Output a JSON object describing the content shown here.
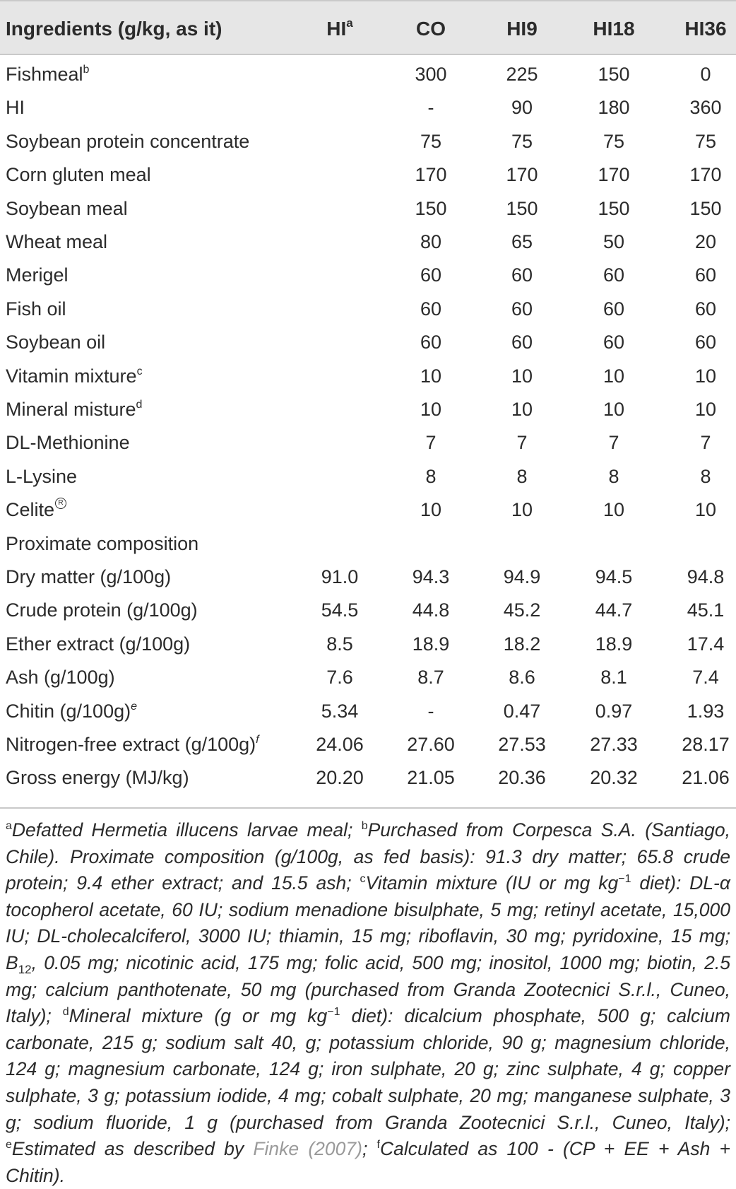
{
  "table": {
    "headers": [
      {
        "text": "Ingredients (g/kg, as it)",
        "sup": ""
      },
      {
        "text": "HI",
        "sup": "a"
      },
      {
        "text": "CO",
        "sup": ""
      },
      {
        "text": "HI9",
        "sup": ""
      },
      {
        "text": "HI18",
        "sup": ""
      },
      {
        "text": "HI36",
        "sup": ""
      }
    ],
    "rows": [
      {
        "label": "Fishmeal",
        "sup": "b",
        "values": [
          "",
          "300",
          "225",
          "150",
          "0"
        ]
      },
      {
        "label": "HI",
        "sup": "",
        "values": [
          "",
          "-",
          "90",
          "180",
          "360"
        ]
      },
      {
        "label": "Soybean protein concentrate",
        "sup": "",
        "values": [
          "",
          "75",
          "75",
          "75",
          "75"
        ]
      },
      {
        "label": "Corn gluten meal",
        "sup": "",
        "values": [
          "",
          "170",
          "170",
          "170",
          "170"
        ]
      },
      {
        "label": "Soybean meal",
        "sup": "",
        "values": [
          "",
          "150",
          "150",
          "150",
          "150"
        ]
      },
      {
        "label": "Wheat meal",
        "sup": "",
        "values": [
          "",
          "80",
          "65",
          "50",
          "20"
        ]
      },
      {
        "label": "Merigel",
        "sup": "",
        "values": [
          "",
          "60",
          "60",
          "60",
          "60"
        ]
      },
      {
        "label": "Fish oil",
        "sup": "",
        "values": [
          "",
          "60",
          "60",
          "60",
          "60"
        ]
      },
      {
        "label": "Soybean oil",
        "sup": "",
        "values": [
          "",
          "60",
          "60",
          "60",
          "60"
        ]
      },
      {
        "label": "Vitamin mixture",
        "sup": "c",
        "values": [
          "",
          "10",
          "10",
          "10",
          "10"
        ]
      },
      {
        "label": "Mineral misture",
        "sup": "d",
        "values": [
          "",
          "10",
          "10",
          "10",
          "10"
        ]
      },
      {
        "label": "DL-Methionine",
        "sup": "",
        "values": [
          "",
          "7",
          "7",
          "7",
          "7"
        ]
      },
      {
        "label": "L-Lysine",
        "sup": "",
        "values": [
          "",
          "8",
          "8",
          "8",
          "8"
        ]
      },
      {
        "label": "Celite",
        "sup": "R",
        "values": [
          "",
          "10",
          "10",
          "10",
          "10"
        ]
      },
      {
        "label": "Proximate composition",
        "sup": "",
        "values": [
          "",
          "",
          "",
          "",
          ""
        ]
      },
      {
        "label": "Dry matter (g/100g)",
        "sup": "",
        "values": [
          "91.0",
          "94.3",
          "94.9",
          "94.5",
          "94.8"
        ]
      },
      {
        "label": "Crude protein (g/100g)",
        "sup": "",
        "values": [
          "54.5",
          "44.8",
          "45.2",
          "44.7",
          "45.1"
        ]
      },
      {
        "label": "Ether extract (g/100g)",
        "sup": "",
        "values": [
          "8.5",
          "18.9",
          "18.2",
          "18.9",
          "17.4"
        ]
      },
      {
        "label": "Ash (g/100g)",
        "sup": "",
        "values": [
          "7.6",
          "8.7",
          "8.6",
          "8.1",
          "7.4"
        ]
      },
      {
        "label": "Chitin (g/100g)",
        "sup": "e",
        "values": [
          "5.34",
          "-",
          "0.47",
          "0.97",
          "1.93"
        ]
      },
      {
        "label": "Nitrogen-free extract (g/100g)",
        "sup": "f",
        "values": [
          "24.06",
          "27.60",
          "27.53",
          "27.33",
          "28.17"
        ]
      },
      {
        "label": "Gross energy (MJ/kg)",
        "sup": "",
        "values": [
          "20.20",
          "21.05",
          "20.36",
          "20.32",
          "21.06"
        ]
      }
    ]
  },
  "footnotes": {
    "a_mark": "a",
    "a_text": "Defatted Hermetia illucens larvae meal; ",
    "b_mark": "b",
    "b_text": "Purchased from Corpesca S.A. (Santiago, Chile). Proximate composition (g/100g, as fed basis): 91.3 dry matter; 65.8 crude protein; 9.4 ether extract; and 15.5 ash; ",
    "c_mark": "c",
    "c_text_1": "Vitamin mixture (IU or mg kg",
    "c_exp": "−1",
    "c_text_2": " diet): DL-α tocopherol acetate, 60 IU; sodium menadione bisulphate, 5 mg; retinyl acetate, 15,000 IU; DL-cholecalciferol, 3000 IU; thiamin, 15 mg; riboflavin, 30 mg; pyridoxine, 15 mg; B",
    "c_sub": "12",
    "c_text_3": ", 0.05 mg; nicotinic acid, 175 mg; folic acid, 500 mg; inositol, 1000 mg; biotin, 2.5 mg; calcium panthotenate, 50 mg (purchased from Granda Zootecnici S.r.l., Cuneo, Italy); ",
    "d_mark": "d",
    "d_text_1": "Mineral mixture (g or mg kg",
    "d_exp": "−1",
    "d_text_2": " diet): dicalcium phosphate, 500 g; calcium carbonate, 215 g; sodium salt 40, g; potassium chloride, 90 g; magnesium chloride, 124 g; magnesium carbonate, 124 g; iron sulphate, 20 g; zinc sulphate, 4 g; copper sulphate, 3 g; potassium iodide, 4 mg; cobalt sulphate, 20 mg; manganese sulphate, 3 g; sodium fluoride, 1 g (purchased from Granda Zootecnici S.r.l., Cuneo, Italy); ",
    "e_mark": "e",
    "e_text": "Estimated as described by ",
    "e_link": "Finke (2007)",
    "e_end": "; ",
    "f_mark": "f",
    "f_text": "Calculated as 100 - (CP + EE + Ash + Chitin)."
  }
}
